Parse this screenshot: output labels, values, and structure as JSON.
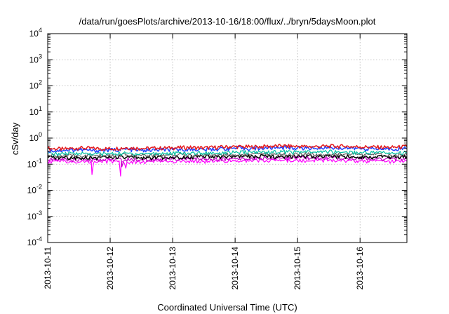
{
  "chart_data": {
    "type": "line",
    "title": "/data/run/goesPlots/archive/2013-10-16/18:00/flux/../bryn/5daysMoon.plot",
    "xlabel": "Coordinated Universal Time (UTC)",
    "ylabel": "cSv/day",
    "xscale": "time",
    "yscale": "log",
    "grid": true,
    "xlim": [
      "2013-10-11T00:00",
      "2013-10-16T18:00"
    ],
    "ylim": [
      0.0001,
      10000
    ],
    "x_ticks": [
      "2013-10-11",
      "2013-10-12",
      "2013-10-13",
      "2013-10-14",
      "2013-10-15",
      "2013-10-16"
    ],
    "y_ticks": [
      {
        "value": 0.0001,
        "base": "10",
        "exp": "-4"
      },
      {
        "value": 0.001,
        "base": "10",
        "exp": "-3"
      },
      {
        "value": 0.01,
        "base": "10",
        "exp": "-2"
      },
      {
        "value": 0.1,
        "base": "10",
        "exp": "-1"
      },
      {
        "value": 1,
        "base": "10",
        "exp": "0"
      },
      {
        "value": 10,
        "base": "10",
        "exp": "1"
      },
      {
        "value": 100,
        "base": "10",
        "exp": "2"
      },
      {
        "value": 1000,
        "base": "10",
        "exp": "3"
      },
      {
        "value": 10000,
        "base": "10",
        "exp": "4"
      }
    ],
    "x": [
      "2013-10-11T00:00",
      "2013-10-11T06:00",
      "2013-10-11T12:00",
      "2013-10-11T18:00",
      "2013-10-12T00:00",
      "2013-10-12T06:00",
      "2013-10-12T12:00",
      "2013-10-12T18:00",
      "2013-10-13T00:00",
      "2013-10-13T06:00",
      "2013-10-13T12:00",
      "2013-10-13T18:00",
      "2013-10-14T00:00",
      "2013-10-14T06:00",
      "2013-10-14T12:00",
      "2013-10-14T18:00",
      "2013-10-15T00:00",
      "2013-10-15T06:00",
      "2013-10-15T12:00",
      "2013-10-15T18:00",
      "2013-10-16T00:00",
      "2013-10-16T06:00",
      "2013-10-16T12:00",
      "2013-10-16T18:00"
    ],
    "series": [
      {
        "color": "#e41a1c",
        "width": 1.5,
        "values": [
          0.4,
          0.38,
          0.42,
          0.4,
          0.39,
          0.43,
          0.4,
          0.41,
          0.42,
          0.44,
          0.42,
          0.45,
          0.47,
          0.46,
          0.48,
          0.5,
          0.48,
          0.47,
          0.49,
          0.48,
          0.46,
          0.45,
          0.44,
          0.47
        ]
      },
      {
        "color": "#2040ff",
        "width": 1.5,
        "values": [
          0.33,
          0.34,
          0.36,
          0.33,
          0.35,
          0.37,
          0.34,
          0.35,
          0.36,
          0.38,
          0.36,
          0.39,
          0.41,
          0.4,
          0.42,
          0.44,
          0.42,
          0.41,
          0.43,
          0.42,
          0.4,
          0.39,
          0.38,
          0.41
        ]
      },
      {
        "color": "#00c0a0",
        "width": 1.2,
        "values": [
          0.25,
          0.25,
          0.26,
          0.25,
          0.25,
          0.26,
          0.25,
          0.26,
          0.26,
          0.27,
          0.27,
          0.28,
          0.28,
          0.29,
          0.29,
          0.3,
          0.29,
          0.29,
          0.3,
          0.29,
          0.28,
          0.28,
          0.27,
          0.28
        ]
      },
      {
        "color": "#606060",
        "width": 1.2,
        "values": [
          0.21,
          0.21,
          0.21,
          0.21,
          0.21,
          0.22,
          0.21,
          0.22,
          0.22,
          0.22,
          0.22,
          0.23,
          0.23,
          0.23,
          0.24,
          0.24,
          0.24,
          0.24,
          0.24,
          0.24,
          0.23,
          0.23,
          0.22,
          0.23
        ]
      },
      {
        "color": "#000000",
        "width": 1.5,
        "values": [
          0.18,
          0.18,
          0.18,
          0.18,
          0.18,
          0.18,
          0.18,
          0.18,
          0.19,
          0.19,
          0.19,
          0.19,
          0.19,
          0.2,
          0.2,
          0.2,
          0.2,
          0.2,
          0.2,
          0.2,
          0.19,
          0.19,
          0.19,
          0.19
        ]
      },
      {
        "color": "#c000c0",
        "width": 1.2,
        "values": [
          0.15,
          0.15,
          0.15,
          0.15,
          0.15,
          0.15,
          0.15,
          0.15,
          0.16,
          0.16,
          0.16,
          0.16,
          0.16,
          0.16,
          0.17,
          0.17,
          0.17,
          0.17,
          0.17,
          0.17,
          0.16,
          0.16,
          0.16,
          0.16
        ]
      },
      {
        "color": "#ff00ff",
        "width": 1.2,
        "values": [
          0.13,
          0.13,
          0.12,
          0.13,
          0.13,
          0.12,
          0.12,
          0.13,
          0.13,
          0.13,
          0.13,
          0.13,
          0.14,
          0.14,
          0.14,
          0.14,
          0.14,
          0.14,
          0.14,
          0.14,
          0.13,
          0.13,
          0.13,
          0.13
        ]
      }
    ],
    "annotations": [
      {
        "series": 6,
        "x": "2013-10-11T17:00",
        "value": 0.04
      },
      {
        "series": 6,
        "x": "2013-10-12T04:00",
        "value": 0.035
      },
      {
        "series": 6,
        "x": "2013-10-12T06:00",
        "value": 0.07
      },
      {
        "series": 5,
        "x": "2013-10-12T04:30",
        "value": 0.08
      }
    ]
  }
}
